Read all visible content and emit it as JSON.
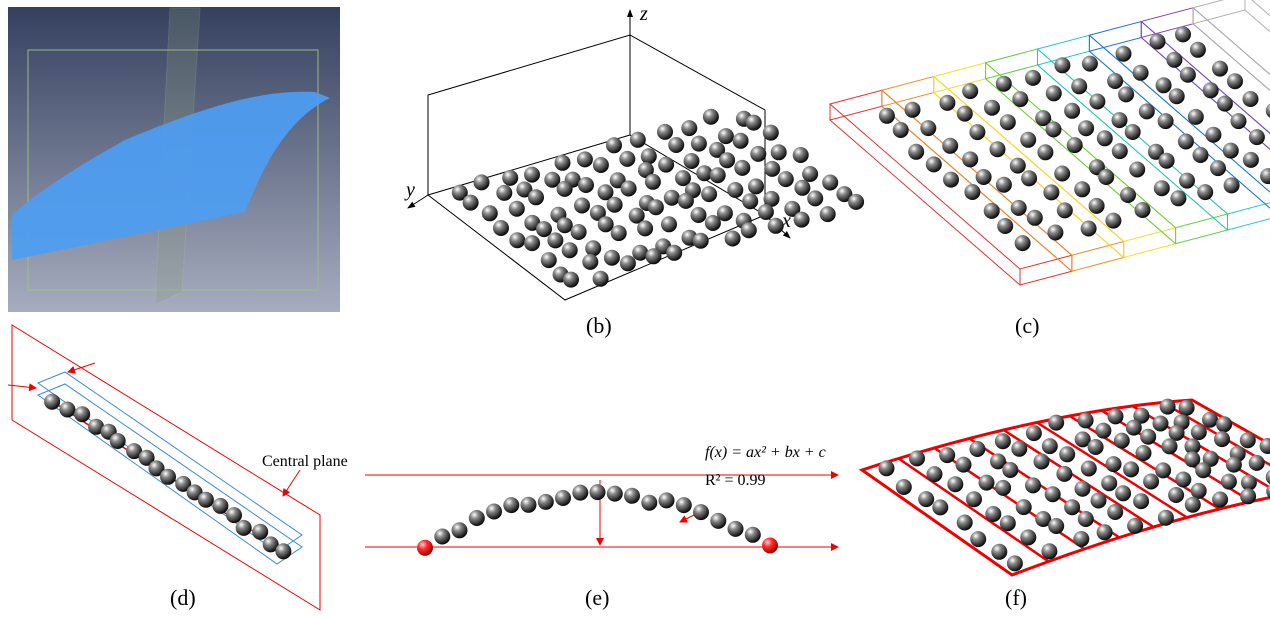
{
  "panel_labels": {
    "b": "(b)",
    "c": "(c)",
    "d": "(d)",
    "e": "(e)",
    "f": "(f)"
  },
  "axes": {
    "z": "z",
    "y": "y",
    "x": "x"
  },
  "annotations": {
    "central_plane": "Central plane",
    "equation": "f(x) = ax² + bx + c",
    "r_squared": "R² = 0.99"
  }
}
